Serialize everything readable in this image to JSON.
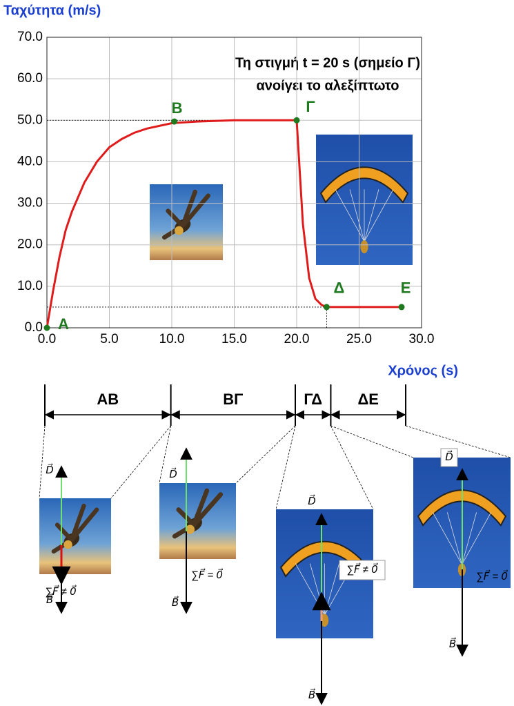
{
  "chart_data": {
    "type": "line",
    "title": "Ταχύτητα (m/s)",
    "x_label": "Χρόνος (s)",
    "annotation": [
      "Τη στιγμή t = 20 s (σημείο Γ)",
      "ανοίγει το αλεξίπτωτο"
    ],
    "xlim": [
      0,
      30
    ],
    "ylim": [
      0,
      70
    ],
    "xticks": [
      {
        "value": 0,
        "label": "0.0"
      },
      {
        "value": 5,
        "label": "5.0"
      },
      {
        "value": 10,
        "label": "10.0"
      },
      {
        "value": 15,
        "label": "15.0"
      },
      {
        "value": 20,
        "label": "20.0"
      },
      {
        "value": 25,
        "label": "25.0"
      },
      {
        "value": 30,
        "label": "30.0"
      }
    ],
    "yticks": [
      {
        "value": 0,
        "label": "0.0"
      },
      {
        "value": 10,
        "label": "10.0"
      },
      {
        "value": 20,
        "label": "20.0"
      },
      {
        "value": 30,
        "label": "30.0"
      },
      {
        "value": 40,
        "label": "40.0"
      },
      {
        "value": 50,
        "label": "50.0"
      },
      {
        "value": 60,
        "label": "60.0"
      },
      {
        "value": 70,
        "label": "70.0"
      }
    ],
    "grid": true,
    "series": [
      {
        "color": "#e01b1b",
        "x": [
          0,
          0.5,
          1,
          1.5,
          2,
          3,
          4,
          5,
          6,
          7,
          8,
          10,
          12,
          15,
          18,
          20,
          20.2,
          20.5,
          21,
          21.5,
          22,
          22.4,
          25,
          28.4
        ],
        "values": [
          0,
          9,
          17,
          23.5,
          28,
          35,
          40,
          43.5,
          45.5,
          47,
          48,
          49.3,
          49.7,
          50,
          50,
          50,
          40,
          25,
          12,
          7,
          5.5,
          5,
          5,
          5
        ]
      }
    ],
    "points": [
      {
        "label": "Α",
        "x": 0,
        "y": 0
      },
      {
        "label": "Β",
        "x": 10.2,
        "y": 49.7
      },
      {
        "label": "Γ",
        "x": 20,
        "y": 50
      },
      {
        "label": "Δ",
        "x": 22.4,
        "y": 5
      },
      {
        "label": "Ε",
        "x": 28.4,
        "y": 5
      }
    ],
    "point_color": "#1f7a1f"
  },
  "diagram": {
    "intervals": [
      "ΑΒ",
      "ΒΓ",
      "ΓΔ",
      "ΔΕ"
    ],
    "panels": [
      {
        "drag": "D⃗",
        "net": "∑F⃗ ≠ 0⃗",
        "weight": "B⃗"
      },
      {
        "drag": "D⃗",
        "net": "∑F⃗ = 0⃗",
        "weight": "B⃗"
      },
      {
        "drag": "D⃗",
        "net": "∑F⃗ ≠ 0⃗",
        "weight": "B⃗"
      },
      {
        "drag": "D⃗",
        "net": "∑F⃗ = 0⃗",
        "weight": "B⃗"
      }
    ]
  }
}
